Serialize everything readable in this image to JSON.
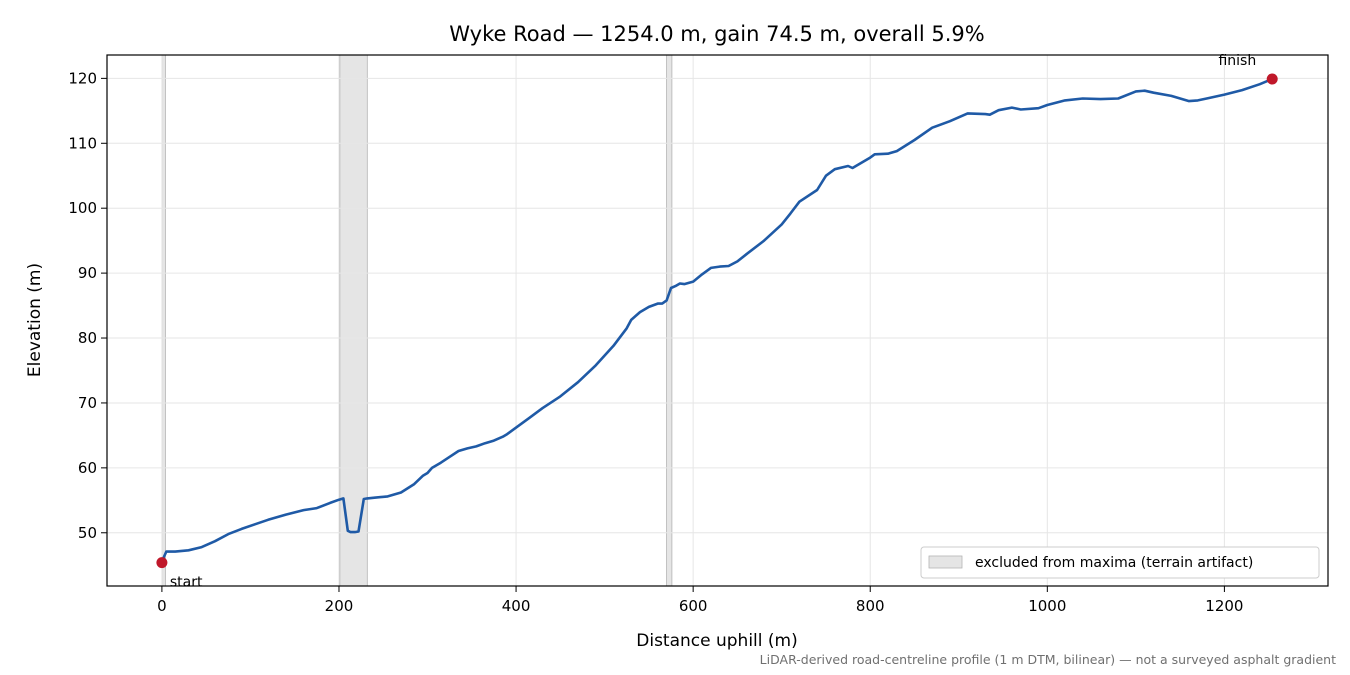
{
  "chart_data": {
    "type": "line",
    "title": "Wyke Road — 1254.0 m, gain 74.5 m, overall 5.9%",
    "xlabel": "Distance uphill (m)",
    "ylabel": "Elevation (m)",
    "xlim": [
      -62,
      1317
    ],
    "ylim": [
      41.8,
      123.6
    ],
    "xticks": [
      0,
      200,
      400,
      600,
      800,
      1000,
      1200
    ],
    "yticks": [
      50,
      60,
      70,
      80,
      90,
      100,
      110,
      120
    ],
    "grid": true,
    "legend_placement": "lower right",
    "colors": {
      "line": "#1f5aa6",
      "marker": "#c0182a",
      "band": "#b4b4b4"
    },
    "series": [
      {
        "x": [
          0,
          2,
          5,
          15,
          30,
          45,
          60,
          75,
          90,
          105,
          120,
          140,
          160,
          175,
          190,
          200,
          205,
          210,
          213,
          218,
          222,
          228,
          232,
          240,
          255,
          270,
          285,
          295,
          300,
          305,
          315,
          325,
          335,
          345,
          355,
          365,
          375,
          385,
          390,
          400,
          415,
          430,
          450,
          470,
          490,
          510,
          525,
          530,
          540,
          550,
          560,
          565,
          570,
          575,
          580,
          585,
          590,
          600,
          610,
          620,
          630,
          640,
          650,
          660,
          680,
          700,
          710,
          720,
          740,
          750,
          760,
          775,
          780,
          800,
          805,
          820,
          830,
          850,
          870,
          890,
          910,
          930,
          935,
          945,
          960,
          970,
          990,
          1000,
          1020,
          1040,
          1060,
          1080,
          1100,
          1110,
          1120,
          1140,
          1160,
          1170,
          1180,
          1200,
          1220,
          1240,
          1254
        ],
        "y": [
          45.4,
          46.2,
          47.1,
          47.1,
          47.3,
          47.8,
          48.7,
          49.8,
          50.6,
          51.3,
          52.0,
          52.8,
          53.5,
          53.8,
          54.6,
          55.1,
          55.3,
          50.3,
          50.1,
          50.1,
          50.2,
          55.2,
          55.3,
          55.4,
          55.6,
          56.2,
          57.5,
          58.8,
          59.2,
          60.0,
          60.8,
          61.7,
          62.6,
          63.0,
          63.3,
          63.8,
          64.2,
          64.8,
          65.2,
          66.2,
          67.7,
          69.2,
          71.0,
          73.2,
          75.8,
          78.8,
          81.5,
          82.8,
          84.0,
          84.8,
          85.3,
          85.3,
          85.8,
          87.7,
          88.0,
          88.4,
          88.3,
          88.7,
          89.8,
          90.8,
          91.0,
          91.1,
          91.8,
          92.9,
          95.0,
          97.5,
          99.2,
          101.0,
          102.8,
          105.0,
          106.0,
          106.5,
          106.2,
          107.8,
          108.3,
          108.4,
          108.8,
          110.5,
          112.4,
          113.4,
          114.6,
          114.5,
          114.4,
          115.1,
          115.5,
          115.2,
          115.4,
          115.9,
          116.6,
          116.9,
          116.8,
          116.9,
          118.0,
          118.1,
          117.8,
          117.3,
          116.5,
          116.6,
          116.9,
          117.5,
          118.2,
          119.1,
          119.9
        ]
      }
    ],
    "excluded_bands": [
      [
        0,
        4
      ],
      [
        201,
        232
      ],
      [
        570,
        576
      ]
    ],
    "legend": [
      {
        "label": "excluded from maxima (terrain artifact)"
      }
    ],
    "annotations": [
      {
        "text": "start",
        "x": 0,
        "y": 45.4
      },
      {
        "text": "finish",
        "x": 1254,
        "y": 119.9
      }
    ],
    "footer": "LiDAR-derived road-centreline profile (1 m DTM, bilinear) — not a surveyed asphalt gradient"
  }
}
